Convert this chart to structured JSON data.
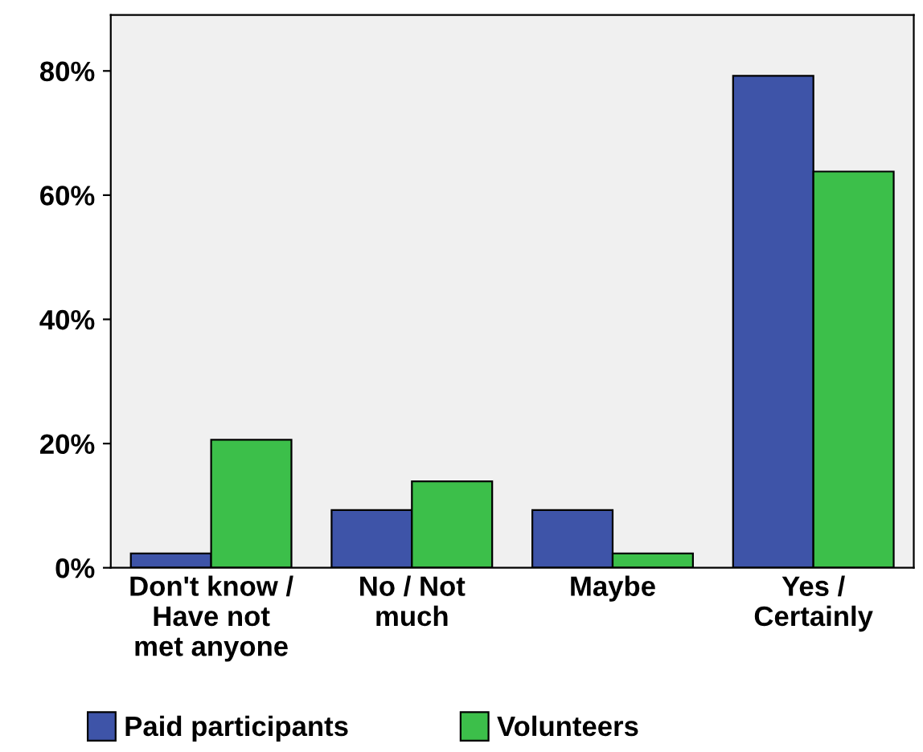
{
  "chart_data": {
    "type": "bar",
    "categories": [
      "Don't know /\nHave not\nmet anyone",
      "No / Not\nmuch",
      "Maybe",
      "Yes /\nCertainly"
    ],
    "series": [
      {
        "name": "Paid participants",
        "color": "#3e54a8",
        "values": [
          2.3,
          9.3,
          9.3,
          79.2
        ]
      },
      {
        "name": "Volunteers",
        "color": "#3cbf4a",
        "values": [
          20.6,
          13.9,
          2.3,
          63.8
        ]
      }
    ],
    "ylim": [
      0,
      89
    ],
    "yticks": [
      {
        "value": 0,
        "label": "0%"
      },
      {
        "value": 20,
        "label": "20%"
      },
      {
        "value": 40,
        "label": "40%"
      },
      {
        "value": 60,
        "label": "60%"
      },
      {
        "value": 80,
        "label": "80%"
      }
    ],
    "grid": false,
    "legend": "bottom"
  }
}
